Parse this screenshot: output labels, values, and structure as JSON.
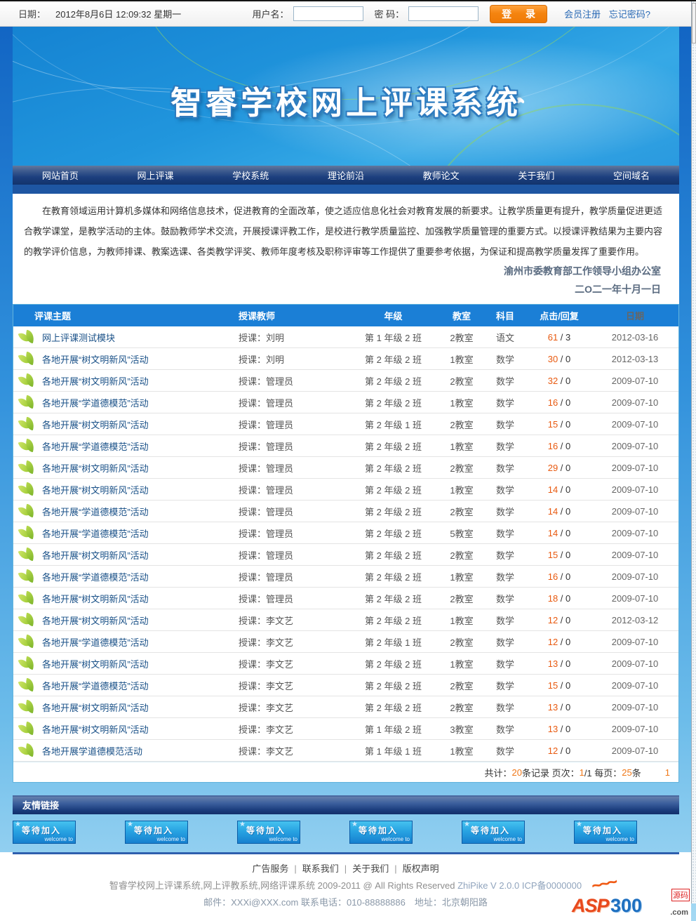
{
  "topbar": {
    "date_label": "日期：",
    "date_value": "2012年8月6日 12:09:32 星期一",
    "username_label": "用户名：",
    "password_label": "密 码：",
    "login_label": "登 录",
    "register_label": "会员注册",
    "forgot_label": "忘记密码?"
  },
  "banner": {
    "title": "智睿学校网上评课系统"
  },
  "nav": {
    "items": [
      "网站首页",
      "网上评课",
      "学校系统",
      "理论前沿",
      "教师论文",
      "关于我们",
      "空间域名"
    ]
  },
  "intro": {
    "paragraph": "在教育领域运用计算机多媒体和网络信息技术，促进教育的全面改革，使之适应信息化社会对教育发展的新要求。让教学质量更有提升，教学质量促进更适合教学课堂，是教学活动的主体。鼓励教师学术交流，开展授课评教工作，是校进行教学质量监控、加强教学质量管理的重要方式。以授课评教结果为主要内容的教学评价信息，为教师排课、教案选课、各类教学评奖、教师年度考核及职称评审等工作提供了重要参考依据，为保证和提高教学质量发挥了重要作用。",
    "org": "渝州市委教育部工作领导小组办公室",
    "date": "二O二一年十月一日"
  },
  "table": {
    "headers": [
      "评课主题",
      "授课教师",
      "年级",
      "教室",
      "科目",
      "点击/回复",
      "日期"
    ],
    "rows": [
      {
        "topic": "网上评课测试模块",
        "teacher": "授课：刘明",
        "grade": "第 1 年级 2 班",
        "room": "2教室",
        "subject": "语文",
        "hits": "61",
        "replies": "3",
        "date": "2012-03-16"
      },
      {
        "topic": "各地开展“树文明新风”活动",
        "teacher": "授课：刘明",
        "grade": "第 2 年级 2 班",
        "room": "1教室",
        "subject": "数学",
        "hits": "30",
        "replies": "0",
        "date": "2012-03-13"
      },
      {
        "topic": "各地开展“树文明新风”活动",
        "teacher": "授课：管理员",
        "grade": "第 2 年级 2 班",
        "room": "2教室",
        "subject": "数学",
        "hits": "32",
        "replies": "0",
        "date": "2009-07-10"
      },
      {
        "topic": "各地开展“学道德模范”活动",
        "teacher": "授课：管理员",
        "grade": "第 2 年级 2 班",
        "room": "1教室",
        "subject": "数学",
        "hits": "16",
        "replies": "0",
        "date": "2009-07-10"
      },
      {
        "topic": "各地开展“树文明新风”活动",
        "teacher": "授课：管理员",
        "grade": "第 2 年级 1 班",
        "room": "2教室",
        "subject": "数学",
        "hits": "15",
        "replies": "0",
        "date": "2009-07-10"
      },
      {
        "topic": "各地开展“学道德模范”活动",
        "teacher": "授课：管理员",
        "grade": "第 2 年级 2 班",
        "room": "1教室",
        "subject": "数学",
        "hits": "16",
        "replies": "0",
        "date": "2009-07-10"
      },
      {
        "topic": "各地开展“树文明新风”活动",
        "teacher": "授课：管理员",
        "grade": "第 2 年级 2 班",
        "room": "2教室",
        "subject": "数学",
        "hits": "29",
        "replies": "0",
        "date": "2009-07-10"
      },
      {
        "topic": "各地开展“树文明新风”活动",
        "teacher": "授课：管理员",
        "grade": "第 2 年级 2 班",
        "room": "1教室",
        "subject": "数学",
        "hits": "14",
        "replies": "0",
        "date": "2009-07-10"
      },
      {
        "topic": "各地开展“学道德模范”活动",
        "teacher": "授课：管理员",
        "grade": "第 2 年级 2 班",
        "room": "2教室",
        "subject": "数学",
        "hits": "14",
        "replies": "0",
        "date": "2009-07-10"
      },
      {
        "topic": "各地开展“学道德模范”活动",
        "teacher": "授课：管理员",
        "grade": "第 2 年级 2 班",
        "room": "5教室",
        "subject": "数学",
        "hits": "14",
        "replies": "0",
        "date": "2009-07-10"
      },
      {
        "topic": "各地开展“树文明新风”活动",
        "teacher": "授课：管理员",
        "grade": "第 2 年级 2 班",
        "room": "2教室",
        "subject": "数学",
        "hits": "15",
        "replies": "0",
        "date": "2009-07-10"
      },
      {
        "topic": "各地开展“学道德模范”活动",
        "teacher": "授课：管理员",
        "grade": "第 2 年级 2 班",
        "room": "1教室",
        "subject": "数学",
        "hits": "16",
        "replies": "0",
        "date": "2009-07-10"
      },
      {
        "topic": "各地开展“树文明新风”活动",
        "teacher": "授课：管理员",
        "grade": "第 2 年级 2 班",
        "room": "2教室",
        "subject": "数学",
        "hits": "18",
        "replies": "0",
        "date": "2009-07-10"
      },
      {
        "topic": "各地开展“树文明新风”活动",
        "teacher": "授课：李文艺",
        "grade": "第 2 年级 2 班",
        "room": "1教室",
        "subject": "数学",
        "hits": "12",
        "replies": "0",
        "date": "2012-03-12"
      },
      {
        "topic": "各地开展“学道德模范”活动",
        "teacher": "授课：李文艺",
        "grade": "第 2 年级 1 班",
        "room": "2教室",
        "subject": "数学",
        "hits": "12",
        "replies": "0",
        "date": "2009-07-10"
      },
      {
        "topic": "各地开展“树文明新风”活动",
        "teacher": "授课：李文艺",
        "grade": "第 2 年级 2 班",
        "room": "1教室",
        "subject": "数学",
        "hits": "13",
        "replies": "0",
        "date": "2009-07-10"
      },
      {
        "topic": "各地开展“学道德模范”活动",
        "teacher": "授课：李文艺",
        "grade": "第 2 年级 2 班",
        "room": "2教室",
        "subject": "数学",
        "hits": "15",
        "replies": "0",
        "date": "2009-07-10"
      },
      {
        "topic": "各地开展“树文明新风”活动",
        "teacher": "授课：李文艺",
        "grade": "第 2 年级 2 班",
        "room": "2教室",
        "subject": "数学",
        "hits": "13",
        "replies": "0",
        "date": "2009-07-10"
      },
      {
        "topic": "各地开展“树文明新风”活动",
        "teacher": "授课：李文艺",
        "grade": "第 1 年级 2 班",
        "room": "3教室",
        "subject": "数学",
        "hits": "13",
        "replies": "0",
        "date": "2009-07-10"
      },
      {
        "topic": "各地开展学道德模范活动",
        "teacher": "授课：李文艺",
        "grade": "第 1 年级 1 班",
        "room": "1教室",
        "subject": "数学",
        "hits": "12",
        "replies": "0",
        "date": "2009-07-10"
      }
    ]
  },
  "pagination": {
    "label_total": "共计：",
    "total": "20",
    "label_records": "条记录 页次：",
    "page": "1",
    "label_page_rest": "/1 每页：",
    "per_page": "25",
    "label_per_rest": "条",
    "current_page": "1"
  },
  "friend_links": {
    "title": "友情链接",
    "banner_count": 6,
    "banner_label": "等待加入",
    "banner_sub": "welcome to",
    "star_icon": "★"
  },
  "footer": {
    "links": [
      "广告服务",
      "联系我们",
      "关于我们",
      "版权声明"
    ],
    "copyright_main": "智睿学校网上评课系统,网上评教系统,网络评课系统 2009-2011 @ All Rights Reserved ",
    "version": "ZhiPike V 2.0.0 ICP备0000000",
    "contact": "邮件：XXXi@XXX.com 联系电话：010-88888886　地址：北京朝阳路",
    "logo": {
      "flame": "~~~",
      "asp": "ASP",
      "num": "300",
      "yuanma": "源码",
      "com": ".com"
    }
  },
  "colors": {
    "accent_orange": "#f07818",
    "table_header_blue": "#1b7fd6",
    "nav_navy": "#1c3f7e",
    "body_blue": "#2f8fdb",
    "hits_red": "#e8590f",
    "link_blue": "#1a5188"
  }
}
